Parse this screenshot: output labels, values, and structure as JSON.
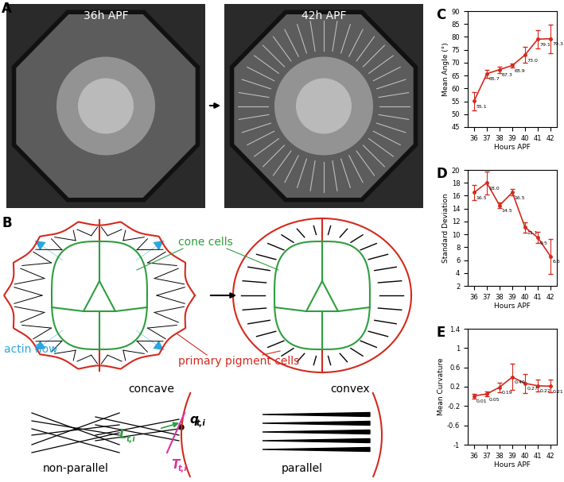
{
  "panel_labels": [
    "A",
    "B",
    "C",
    "D",
    "E"
  ],
  "images": {
    "frames": [
      "36h APF",
      "42h APF"
    ]
  },
  "diagram": {
    "cone_cells": "cone cells",
    "actin_flow": "actin flow",
    "primary_pigment_cells": "primary pigment cells",
    "concave": "concave",
    "convex": "convex",
    "non_parallel": "non-parallel",
    "parallel": "parallel",
    "symbols": [
      {
        "symbol": "L",
        "subscript": "t,i",
        "color": "#2e9e3e"
      },
      {
        "symbol": "q",
        "subscript": "t,i",
        "color": "#000000"
      },
      {
        "symbol": "T",
        "subscript": "t,i",
        "color": "#d6359e"
      }
    ]
  },
  "chart_data": [
    {
      "type": "line",
      "panel": "C",
      "x_label": "Hours APF",
      "y_label": "Mean Angle (°)",
      "x": [
        36,
        37,
        38,
        39,
        40,
        41,
        42
      ],
      "values": [
        55.1,
        65.7,
        67.3,
        68.9,
        73.0,
        79.1,
        79.3
      ],
      "value_labels": [
        "55.1",
        "65.7",
        "67.3",
        "68.9",
        "73.0",
        "79.1",
        "79.3"
      ],
      "errors": [
        3.5,
        1.5,
        1.2,
        0.8,
        3.0,
        3.5,
        5.5
      ],
      "color": "#d42a1e",
      "marker": "o",
      "data_labels": true,
      "xlim": [
        35.5,
        42.5
      ],
      "xticks": [
        36,
        37,
        38,
        39,
        40,
        41,
        42
      ],
      "ylim": [
        45,
        90
      ],
      "yticks": [
        45,
        50,
        55,
        60,
        65,
        70,
        75,
        80,
        85,
        90
      ]
    },
    {
      "type": "line",
      "panel": "D",
      "x_label": "Hours APF",
      "y_label": "Standard Deviation",
      "x": [
        36,
        37,
        38,
        39,
        40,
        41,
        42
      ],
      "values": [
        16.5,
        18.0,
        14.5,
        16.5,
        11.1,
        9.5,
        6.6
      ],
      "value_labels": [
        "16.5",
        "18.0",
        "14.5",
        "16.5",
        "11.1",
        "9.5",
        "6.6"
      ],
      "errors": [
        1.2,
        1.8,
        0.4,
        0.5,
        0.8,
        0.9,
        2.7
      ],
      "color": "#d42a1e",
      "marker": "o",
      "data_labels": true,
      "xlim": [
        35.5,
        42.5
      ],
      "xticks": [
        36,
        37,
        38,
        39,
        40,
        41,
        42
      ],
      "ylim": [
        2,
        20
      ],
      "yticks": [
        2,
        4,
        6,
        8,
        10,
        12,
        14,
        16,
        18,
        20
      ]
    },
    {
      "type": "line",
      "panel": "E",
      "x_label": "Hours APF",
      "y_label": "Mean Curvature",
      "x": [
        36,
        37,
        38,
        39,
        40,
        41,
        42
      ],
      "values": [
        0.01,
        0.05,
        0.19,
        0.4,
        0.27,
        0.22,
        0.21
      ],
      "value_labels": [
        "0.01",
        "0.05",
        "0.19",
        "0.40",
        "0.27",
        "0.22",
        "0.21"
      ],
      "errors": [
        0.05,
        0.05,
        0.1,
        0.27,
        0.2,
        0.12,
        0.13
      ],
      "color": "#d42a1e",
      "marker": "o",
      "data_labels": true,
      "xlim": [
        35.5,
        42.5
      ],
      "xticks": [
        36,
        37,
        38,
        39,
        40,
        41,
        42
      ],
      "ylim": [
        -1,
        1.4
      ],
      "yticks": [
        -1,
        -0.6,
        -0.2,
        0.2,
        0.6,
        1,
        1.4
      ]
    }
  ]
}
